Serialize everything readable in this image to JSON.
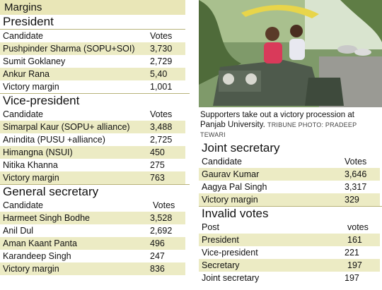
{
  "banner": "Margins",
  "president": {
    "title": "President",
    "header": {
      "candidate": "Candidate",
      "votes": "Votes"
    },
    "rows": [
      {
        "candidate": "Pushpinder Sharma (SOPU+SOI)",
        "votes": "3,730"
      },
      {
        "candidate": "Sumit Goklaney",
        "votes": "2,729"
      },
      {
        "candidate": "Ankur Rana",
        "votes": "5,40"
      },
      {
        "candidate": "Victory margin",
        "votes": "1,001"
      }
    ]
  },
  "vice_president": {
    "title": "Vice-president",
    "header": {
      "candidate": "Candidate",
      "votes": "Votes"
    },
    "rows": [
      {
        "candidate": "Simarpal Kaur  (SOPU+ alliance)",
        "votes": "3,488"
      },
      {
        "candidate": "Anindita  (PUSU +alliance)",
        "votes": "2,725"
      },
      {
        "candidate": "Himangna (NSUI)",
        "votes": "450"
      },
      {
        "candidate": "Nitika Khanna",
        "votes": "275"
      },
      {
        "candidate": "Victory margin",
        "votes": "763"
      }
    ]
  },
  "general_secretary": {
    "title": "General secretary",
    "header": {
      "candidate": "Candidate",
      "votes": "Votes"
    },
    "rows": [
      {
        "candidate": "Harmeet Singh Bodhe",
        "votes": "3,528"
      },
      {
        "candidate": "Anil Dul",
        "votes": "2,692"
      },
      {
        "candidate": "Aman Kaant Panta",
        "votes": "496"
      },
      {
        "candidate": "Karandeep Singh",
        "votes": "247"
      },
      {
        "candidate": "Victory margin",
        "votes": "836"
      }
    ]
  },
  "caption": {
    "text": "Supporters take out a victory procession at Panjab University.",
    "credit": "TRIBUNE PHOTO: PRADEEP TEWARI"
  },
  "joint_secretary": {
    "title": "Joint secretary",
    "header": {
      "candidate": "Candidate",
      "votes": "Votes"
    },
    "rows": [
      {
        "candidate": "Gaurav Kumar",
        "votes": "3,646"
      },
      {
        "candidate": "Aagya Pal Singh",
        "votes": "3,317"
      },
      {
        "candidate": "Victory margin",
        "votes": "329"
      }
    ]
  },
  "invalid_votes": {
    "title": "Invalid votes",
    "header": {
      "candidate": "Post",
      "votes": "votes"
    },
    "rows": [
      {
        "candidate": "President",
        "votes": "161"
      },
      {
        "candidate": "Vice-president",
        "votes": "221"
      },
      {
        "candidate": "Secretary",
        "votes": "197"
      },
      {
        "candidate": "Joint secretary",
        "votes": "197"
      }
    ]
  },
  "colors": {
    "highlight": "#ecebc4",
    "banner": "#e9e6b7",
    "divider": "#b8b37a"
  }
}
